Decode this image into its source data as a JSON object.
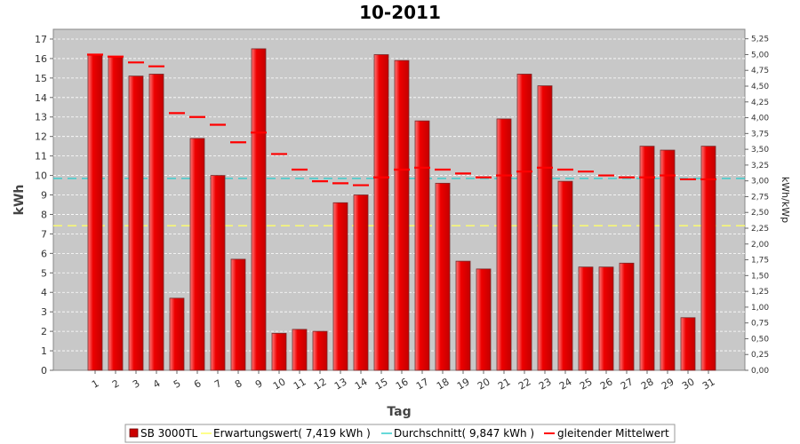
{
  "chart_data": {
    "type": "bar",
    "title": "10-2011",
    "xlabel": "Tag",
    "ylabel": "kWh",
    "y2label": "kWh/kWp",
    "ylim": [
      0,
      17.5
    ],
    "y2lim": [
      0,
      5.4
    ],
    "yticks": [
      "0",
      "1",
      "2",
      "3",
      "4",
      "5",
      "6",
      "7",
      "8",
      "9",
      "10",
      "11",
      "12",
      "13",
      "14",
      "15",
      "16",
      "17"
    ],
    "y2ticks": [
      "0,00",
      "0,25",
      "0,50",
      "0,75",
      "1,00",
      "1,25",
      "1,50",
      "1,75",
      "2,00",
      "2,25",
      "2,50",
      "2,75",
      "3,00",
      "3,25",
      "3,50",
      "3,75",
      "4,00",
      "4,25",
      "4,50",
      "4,75",
      "5,00",
      "5,25"
    ],
    "categories": [
      "1",
      "2",
      "3",
      "4",
      "5",
      "6",
      "7",
      "8",
      "9",
      "10",
      "11",
      "12",
      "13",
      "14",
      "15",
      "16",
      "17",
      "18",
      "19",
      "20",
      "21",
      "22",
      "23",
      "24",
      "25",
      "26",
      "27",
      "28",
      "29",
      "30",
      "31"
    ],
    "series": [
      {
        "name": "SB 3000TL",
        "values": [
          16.2,
          16.1,
          15.1,
          15.2,
          3.7,
          11.9,
          10.0,
          5.7,
          16.5,
          1.9,
          2.1,
          2.0,
          8.6,
          9.0,
          16.2,
          15.9,
          12.8,
          9.6,
          5.6,
          5.2,
          12.9,
          15.2,
          14.6,
          9.7,
          5.3,
          5.3,
          5.5,
          11.5,
          11.3,
          2.7,
          11.5
        ]
      },
      {
        "name": "gleitender Mittelwert",
        "values": [
          16.2,
          16.1,
          15.8,
          15.6,
          13.2,
          13.0,
          12.6,
          11.7,
          12.2,
          11.1,
          10.3,
          9.7,
          9.6,
          9.5,
          9.9,
          10.3,
          10.4,
          10.3,
          10.1,
          9.9,
          10.0,
          10.2,
          10.4,
          10.3,
          10.2,
          10.0,
          9.9,
          9.9,
          10.0,
          9.8,
          9.8
        ]
      }
    ],
    "reference_lines": [
      {
        "name": "Erwartungswert",
        "value": 7.419
      },
      {
        "name": "Durchschnitt",
        "value": 9.847
      }
    ],
    "legend": {
      "position": "bottom",
      "entries": [
        "SB 3000TL",
        "Erwartungswert( 7,419 kWh )",
        "Durchschnitt( 9,847 kWh )",
        "gleitender Mittelwert"
      ]
    },
    "colors": {
      "bar": "#e00000",
      "bar_highlight": "#ff6666",
      "moving_avg": "#ff0000",
      "expected": "#ffff66",
      "average": "#33cccc",
      "plot_bg": "#c8c8c8",
      "grid": "#ffffff"
    },
    "grid": true
  }
}
